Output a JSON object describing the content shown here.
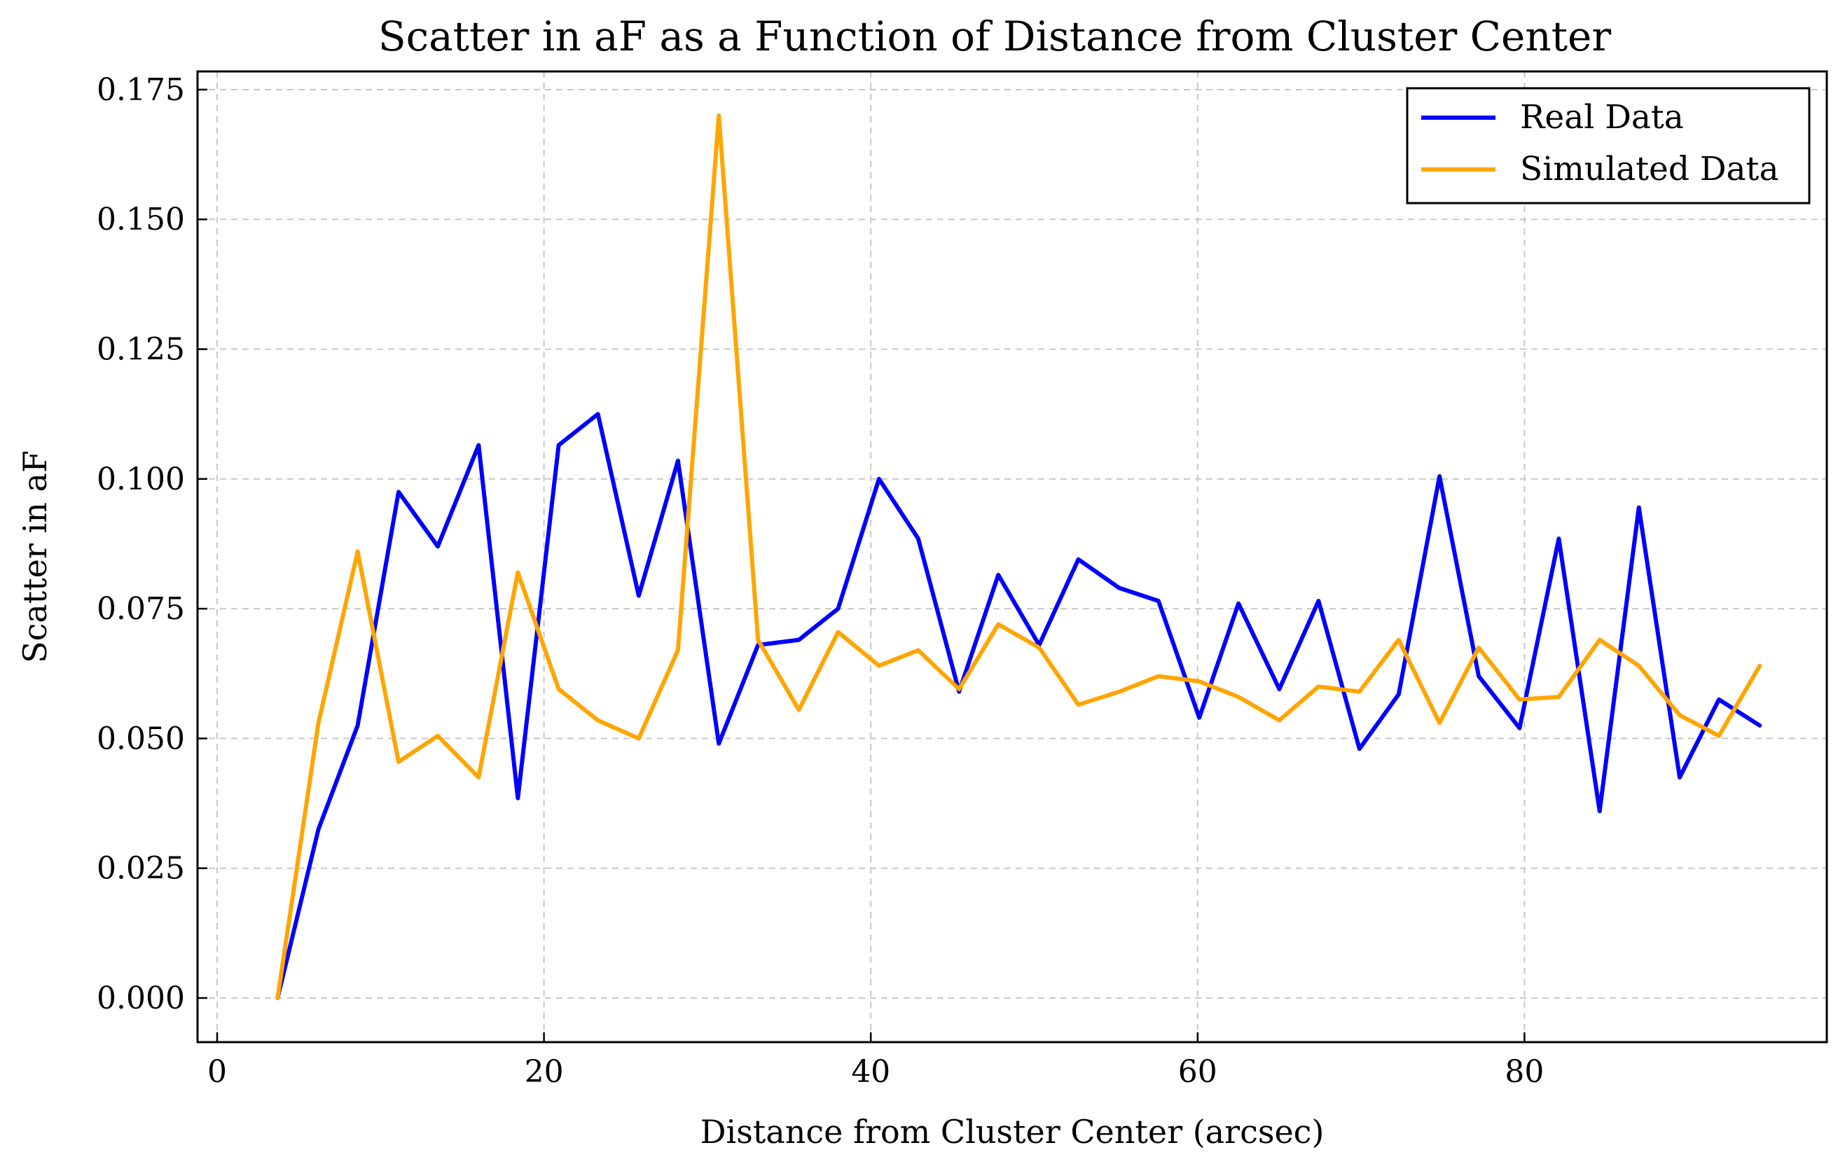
{
  "chart_data": {
    "type": "line",
    "title": "Scatter in aF as a Function of Distance from Cluster Center",
    "xlabel": "Distance from Cluster Center (arcsec)",
    "ylabel": "Scatter in aF",
    "xlim": [
      -1.2,
      98.5
    ],
    "ylim": [
      -0.0085,
      0.1785
    ],
    "xticks": [
      0,
      20,
      40,
      60,
      80
    ],
    "xtick_labels": [
      "0",
      "20",
      "40",
      "60",
      "80"
    ],
    "yticks": [
      0.0,
      0.025,
      0.05,
      0.075,
      0.1,
      0.125,
      0.15,
      0.175
    ],
    "ytick_labels": [
      "0.000",
      "0.025",
      "0.050",
      "0.075",
      "0.100",
      "0.125",
      "0.150",
      "0.175"
    ],
    "grid": true,
    "legend_position": "top-right",
    "x": [
      3.7,
      6.2,
      8.6,
      11.1,
      13.5,
      16.0,
      18.4,
      20.9,
      23.3,
      25.8,
      28.2,
      30.7,
      33.1,
      35.6,
      38.0,
      40.5,
      42.9,
      45.4,
      47.8,
      50.3,
      52.7,
      55.2,
      57.6,
      60.1,
      62.5,
      65.0,
      67.4,
      69.9,
      72.3,
      74.8,
      77.2,
      79.7,
      82.1,
      84.6,
      87.0,
      89.5,
      91.9,
      94.4
    ],
    "series": [
      {
        "name": "Real Data",
        "color": "#0000ff",
        "values": [
          0.0,
          0.0325,
          0.0525,
          0.0975,
          0.087,
          0.1065,
          0.0385,
          0.1065,
          0.1125,
          0.0775,
          0.1035,
          0.049,
          0.068,
          0.069,
          0.075,
          0.1,
          0.0885,
          0.059,
          0.0815,
          0.068,
          0.0845,
          0.079,
          0.0765,
          0.054,
          0.076,
          0.0595,
          0.0765,
          0.048,
          0.0585,
          0.1005,
          0.062,
          0.052,
          0.0885,
          0.036,
          0.0945,
          0.0425,
          0.0575,
          0.0525
        ]
      },
      {
        "name": "Simulated Data",
        "color": "#ffa500",
        "values": [
          0.0,
          0.053,
          0.086,
          0.0455,
          0.0505,
          0.0425,
          0.082,
          0.0595,
          0.0535,
          0.05,
          0.067,
          0.17,
          0.069,
          0.0555,
          0.0705,
          0.064,
          0.067,
          0.0595,
          0.072,
          0.0675,
          0.0565,
          0.059,
          0.062,
          0.061,
          0.058,
          0.0535,
          0.06,
          0.059,
          0.069,
          0.053,
          0.0675,
          0.0575,
          0.058,
          0.069,
          0.064,
          0.0545,
          0.0505,
          0.064
        ]
      }
    ]
  }
}
